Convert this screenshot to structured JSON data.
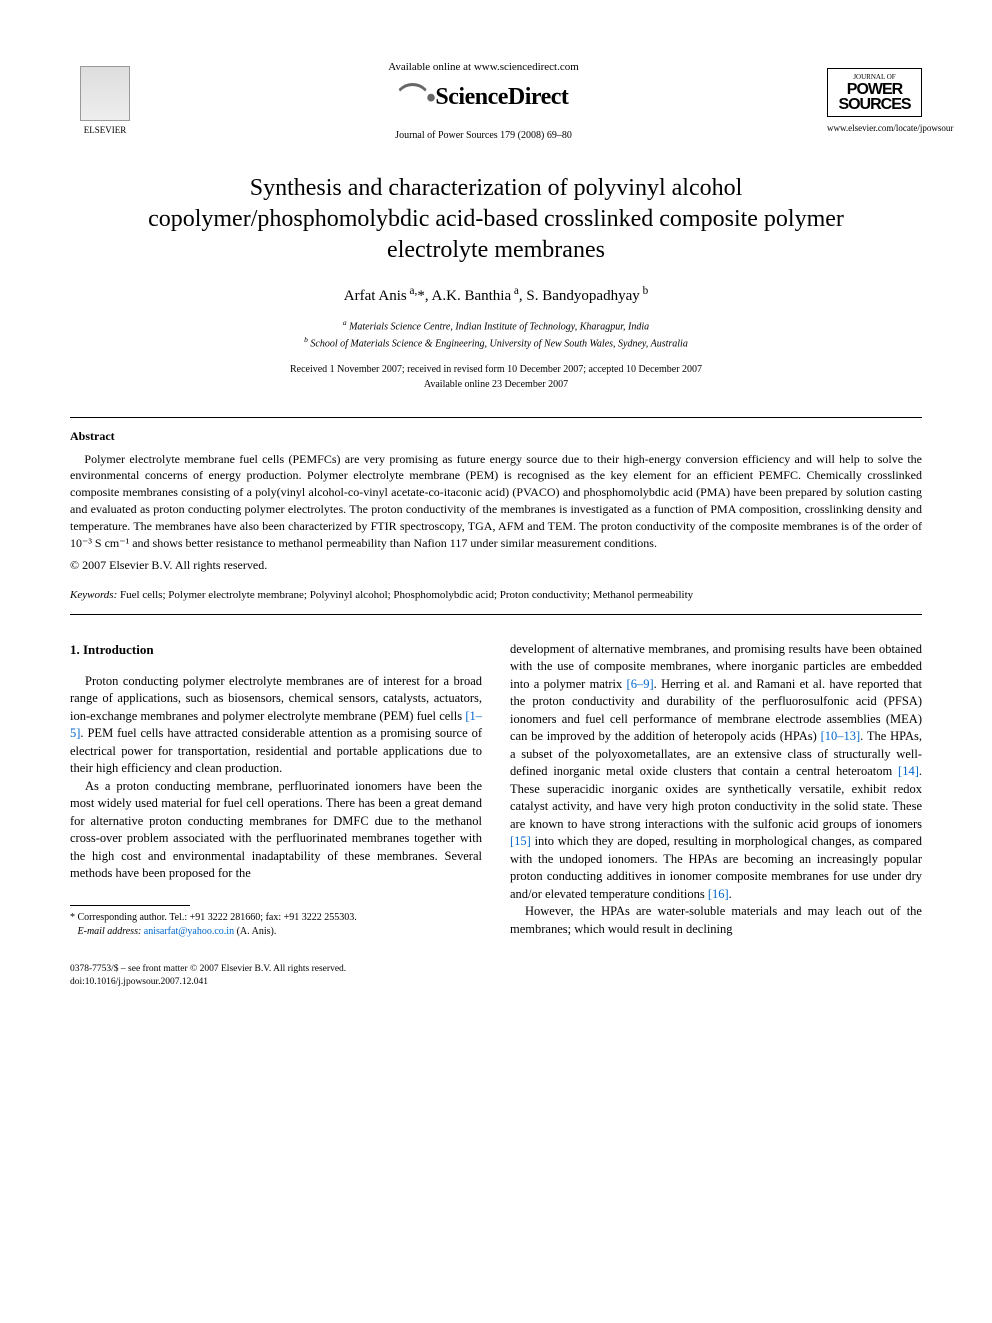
{
  "header": {
    "available_online": "Available online at www.sciencedirect.com",
    "sciencedirect": "ScienceDirect",
    "journal_ref": "Journal of Power Sources 179 (2008) 69–80",
    "elsevier_label": "ELSEVIER",
    "journal_box_top": "JOURNAL OF",
    "journal_box_name1": "POWER",
    "journal_box_name2": "SOURCES",
    "journal_url": "www.elsevier.com/locate/jpowsour"
  },
  "title": "Synthesis and characterization of polyvinyl alcohol copolymer/phosphomolybdic acid-based crosslinked composite polymer electrolyte membranes",
  "authors_html": "Arfat Anis <sup>a,</sup>*, A.K. Banthia <sup>a</sup>, S. Bandyopadhyay <sup>b</sup>",
  "affiliations": {
    "a": "Materials Science Centre, Indian Institute of Technology, Kharagpur, India",
    "b": "School of Materials Science & Engineering, University of New South Wales, Sydney, Australia"
  },
  "dates": {
    "line1": "Received 1 November 2007; received in revised form 10 December 2007; accepted 10 December 2007",
    "line2": "Available online 23 December 2007"
  },
  "abstract": {
    "heading": "Abstract",
    "text": "Polymer electrolyte membrane fuel cells (PEMFCs) are very promising as future energy source due to their high-energy conversion efficiency and will help to solve the environmental concerns of energy production. Polymer electrolyte membrane (PEM) is recognised as the key element for an efficient PEMFC. Chemically crosslinked composite membranes consisting of a poly(vinyl alcohol-co-vinyl acetate-co-itaconic acid) (PVACO) and phosphomolybdic acid (PMA) have been prepared by solution casting and evaluated as proton conducting polymer electrolytes. The proton conductivity of the membranes is investigated as a function of PMA composition, crosslinking density and temperature. The membranes have also been characterized by FTIR spectroscopy, TGA, AFM and TEM. The proton conductivity of the composite membranes is of the order of 10⁻³ S cm⁻¹ and shows better resistance to methanol permeability than Nafion 117 under similar measurement conditions.",
    "copyright": "© 2007 Elsevier B.V. All rights reserved."
  },
  "keywords": {
    "label": "Keywords:",
    "text": "Fuel cells; Polymer electrolyte membrane; Polyvinyl alcohol; Phosphomolybdic acid; Proton conductivity; Methanol permeability"
  },
  "section1": {
    "heading": "1. Introduction",
    "p1_pre": "Proton conducting polymer electrolyte membranes are of interest for a broad range of applications, such as biosensors, chemical sensors, catalysts, actuators, ion-exchange membranes and polymer electrolyte membrane (PEM) fuel cells ",
    "p1_ref": "[1–5]",
    "p1_post": ". PEM fuel cells have attracted considerable attention as a promising source of electrical power for transportation, residential and portable applications due to their high efficiency and clean production.",
    "p2": "As a proton conducting membrane, perfluorinated ionomers have been the most widely used material for fuel cell operations. There has been a great demand for alternative proton conducting membranes for DMFC due to the methanol cross-over problem associated with the perfluorinated membranes together with the high cost and environmental inadaptability of these membranes. Several methods have been proposed for the",
    "p3_a": "development of alternative membranes, and promising results have been obtained with the use of composite membranes, where inorganic particles are embedded into a polymer matrix ",
    "p3_ref1": "[6–9]",
    "p3_b": ". Herring et al. and Ramani et al. have reported that the proton conductivity and durability of the perfluorosulfonic acid (PFSA) ionomers and fuel cell performance of membrane electrode assemblies (MEA) can be improved by the addition of heteropoly acids (HPAs) ",
    "p3_ref2": "[10–13]",
    "p3_c": ". The HPAs, a subset of the polyoxometallates, are an extensive class of structurally well-defined inorganic metal oxide clusters that contain a central heteroatom ",
    "p3_ref3": "[14]",
    "p3_d": ". These superacidic inorganic oxides are synthetically versatile, exhibit redox catalyst activity, and have very high proton conductivity in the solid state. These are known to have strong interactions with the sulfonic acid groups of ionomers ",
    "p3_ref4": "[15]",
    "p3_e": " into which they are doped, resulting in morphological changes, as compared with the undoped ionomers. The HPAs are becoming an increasingly popular proton conducting additives in ionomer composite membranes for use under dry and/or elevated temperature conditions ",
    "p3_ref5": "[16]",
    "p3_f": ".",
    "p4": "However, the HPAs are water-soluble materials and may leach out of the membranes; which would result in declining"
  },
  "footnote": {
    "corr": "* Corresponding author. Tel.: +91 3222 281660; fax: +91 3222 255303.",
    "email_label": "E-mail address:",
    "email": "anisarfat@yahoo.co.in",
    "email_author": "(A. Anis)."
  },
  "footer": {
    "line1": "0378-7753/$ – see front matter © 2007 Elsevier B.V. All rights reserved.",
    "line2": "doi:10.1016/j.jpowsour.2007.12.041"
  },
  "colors": {
    "link": "#0066cc",
    "text": "#000000",
    "background": "#ffffff"
  },
  "typography": {
    "body_family": "Georgia, Times New Roman, serif",
    "title_size_pt": 18,
    "body_size_pt": 10,
    "abstract_size_pt": 9,
    "footnote_size_pt": 8
  }
}
